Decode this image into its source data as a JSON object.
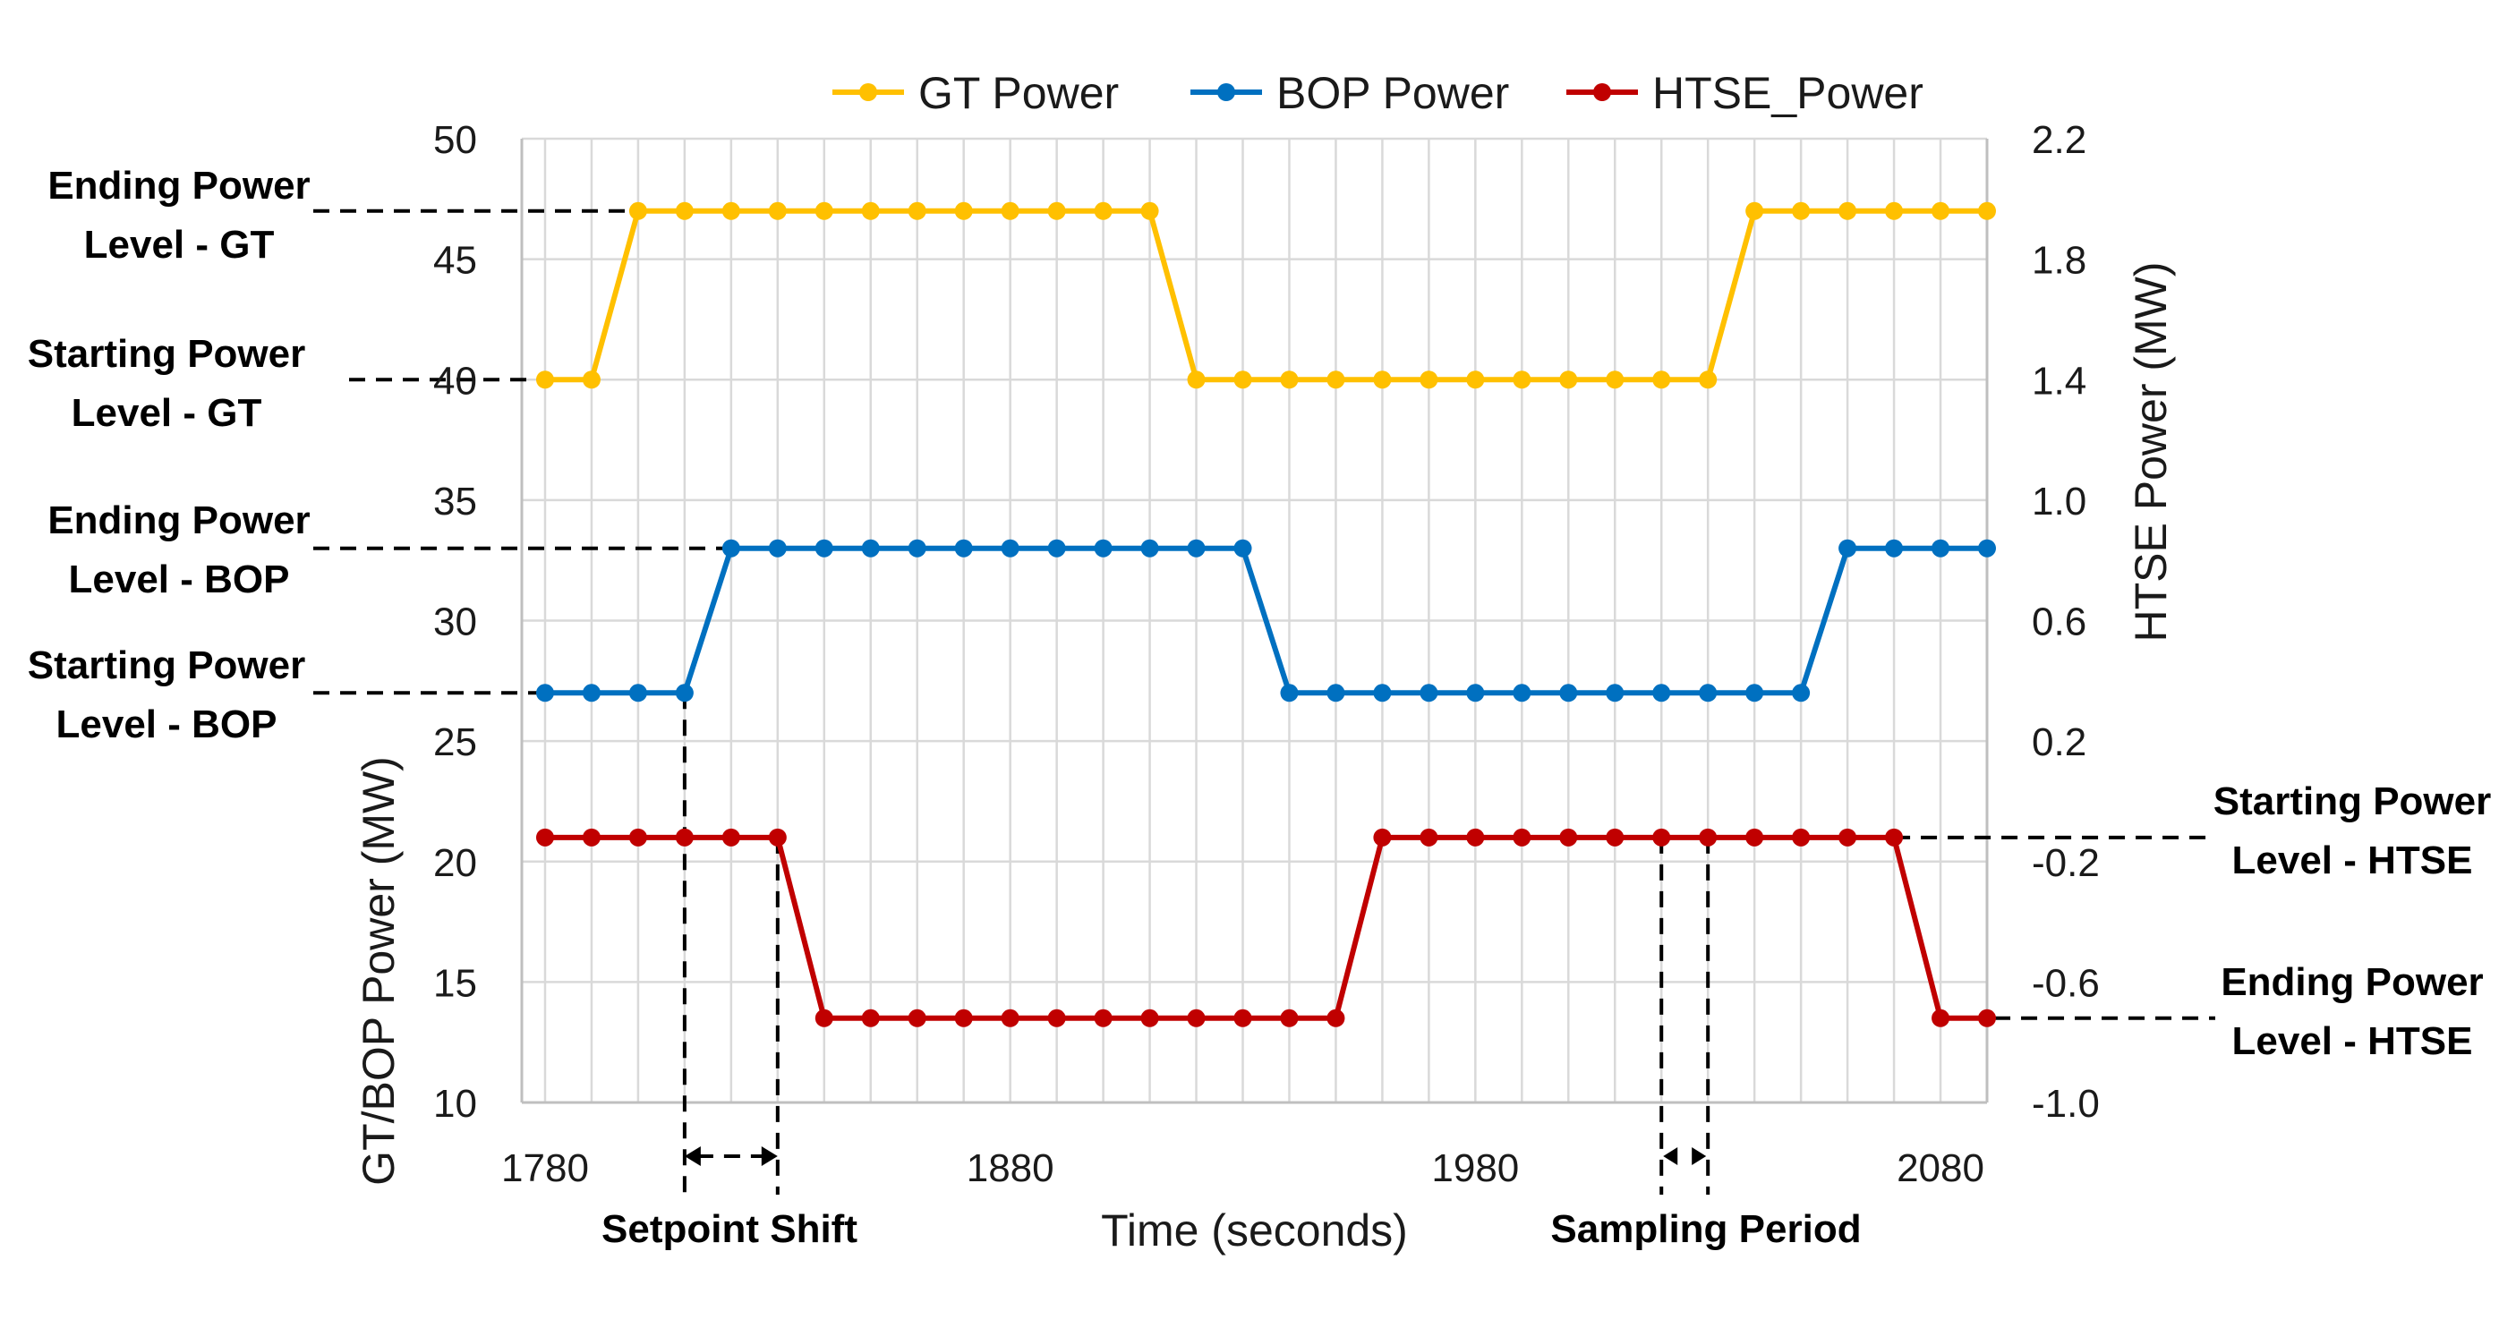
{
  "chart_data": {
    "type": "line",
    "title": "",
    "xlabel": "Time (seconds)",
    "ylabel": "GT/BOP Power (MW)",
    "y2label": "HTSE Power (MW)",
    "xlim": [
      1775,
      2090
    ],
    "ylim": [
      10,
      50
    ],
    "y2lim": [
      -1.0,
      2.2
    ],
    "xticks": [
      1780,
      1880,
      1980,
      2080
    ],
    "yticks": [
      10,
      15,
      20,
      25,
      30,
      35,
      40,
      45,
      50
    ],
    "y2ticks": [
      "-1.0",
      "-0.6",
      "-0.2",
      "0.2",
      "0.6",
      "1.0",
      "1.4",
      "1.8",
      "2.2"
    ],
    "x": [
      1780,
      1790,
      1800,
      1810,
      1820,
      1830,
      1840,
      1850,
      1860,
      1870,
      1880,
      1890,
      1900,
      1910,
      1920,
      1930,
      1940,
      1950,
      1960,
      1970,
      1980,
      1990,
      2000,
      2010,
      2020,
      2030,
      2040,
      2050,
      2060,
      2070,
      2080,
      2090
    ],
    "series": [
      {
        "name": "GT Power",
        "color": "#FFC000",
        "axis": "left",
        "values": [
          40,
          40,
          47,
          47,
          47,
          47,
          47,
          47,
          47,
          47,
          47,
          47,
          47,
          47,
          40,
          40,
          40,
          40,
          40,
          40,
          40,
          40,
          40,
          40,
          40,
          40,
          47,
          47,
          47,
          47,
          47,
          47
        ]
      },
      {
        "name": "BOP Power",
        "color": "#0070C0",
        "axis": "left",
        "values": [
          27,
          27,
          27,
          27,
          33,
          33,
          33,
          33,
          33,
          33,
          33,
          33,
          33,
          33,
          33,
          33,
          27,
          27,
          27,
          27,
          27,
          27,
          27,
          27,
          27,
          27,
          27,
          27,
          33,
          33,
          33,
          33
        ]
      },
      {
        "name": "HTSE_Power",
        "color": "#C00000",
        "axis": "right",
        "values": [
          -0.12,
          -0.12,
          -0.12,
          -0.12,
          -0.12,
          -0.12,
          -0.72,
          -0.72,
          -0.72,
          -0.72,
          -0.72,
          -0.72,
          -0.72,
          -0.72,
          -0.72,
          -0.72,
          -0.72,
          -0.72,
          -0.12,
          -0.12,
          -0.12,
          -0.12,
          -0.12,
          -0.12,
          -0.12,
          -0.12,
          -0.12,
          -0.12,
          -0.12,
          -0.12,
          -0.72,
          -0.72
        ]
      }
    ],
    "legend": {
      "position": "top-center",
      "entries": [
        "GT Power",
        "BOP Power",
        "HTSE_Power"
      ]
    },
    "annotations": {
      "gt_end": {
        "line1": "Ending Power",
        "line2": "Level - GT"
      },
      "gt_start": {
        "line1": "Starting Power",
        "line2": "Level - GT"
      },
      "bop_end": {
        "line1": "Ending Power",
        "line2": "Level - BOP"
      },
      "bop_start": {
        "line1": "Starting Power",
        "line2": "Level - BOP"
      },
      "htse_start": {
        "line1": "Starting Power",
        "line2": "Level - HTSE"
      },
      "htse_end": {
        "line1": "Ending Power",
        "line2": "Level - HTSE"
      },
      "setpoint_shift": "Setpoint Shift",
      "sampling_period": "Sampling Period"
    }
  }
}
